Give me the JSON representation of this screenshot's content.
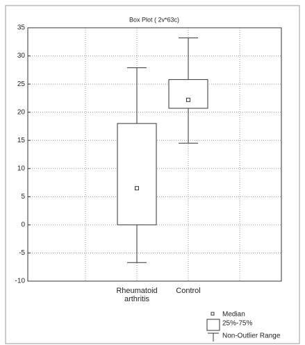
{
  "chart_data": {
    "type": "box",
    "title": "Box Plot ( 2v*63c)",
    "categories": [
      "Rheumatoid arthritis",
      "Control"
    ],
    "min": [
      -6.7,
      14.5
    ],
    "q1": [
      0,
      20.7
    ],
    "median": [
      6.5,
      22.2
    ],
    "q3": [
      18,
      25.8
    ],
    "max": [
      27.9,
      33.2
    ],
    "ylim": [
      -10,
      35
    ],
    "yticks": [
      -10,
      -5,
      0,
      5,
      10,
      15,
      20,
      25,
      30,
      35
    ],
    "grid": true,
    "legend": {
      "median": "Median",
      "box": "25%-75%",
      "whisker": "Non-Outlier Range"
    }
  }
}
